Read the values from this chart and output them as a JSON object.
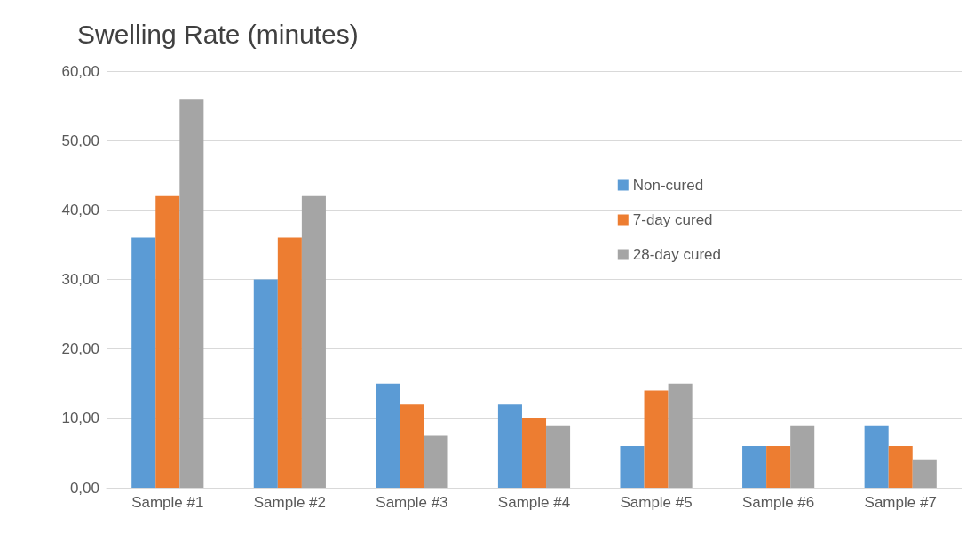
{
  "chart_data": {
    "type": "bar",
    "title": "Swelling Rate (minutes)",
    "categories": [
      "Sample #1",
      "Sample #2",
      "Sample #3",
      "Sample #4",
      "Sample #5",
      "Sample #6",
      "Sample #7"
    ],
    "series": [
      {
        "name": "Non-cured",
        "color": "#5b9bd5",
        "values": [
          36,
          30,
          15,
          12,
          6,
          6,
          9
        ]
      },
      {
        "name": "7-day cured",
        "color": "#ed7d31",
        "values": [
          42,
          36,
          12,
          10,
          14,
          6,
          6
        ]
      },
      {
        "name": "28-day cured",
        "color": "#a5a5a5",
        "values": [
          56,
          42,
          7.5,
          9,
          15,
          9,
          4
        ]
      }
    ],
    "ylim": [
      0,
      60
    ],
    "yticks": [
      {
        "value": 0,
        "label": "0,00"
      },
      {
        "value": 10,
        "label": "10,00"
      },
      {
        "value": 20,
        "label": "20,00"
      },
      {
        "value": 30,
        "label": "30,00"
      },
      {
        "value": 40,
        "label": "40,00"
      },
      {
        "value": 50,
        "label": "50,00"
      },
      {
        "value": 60,
        "label": "60,00"
      }
    ],
    "grid": "y",
    "legend": "top right"
  }
}
